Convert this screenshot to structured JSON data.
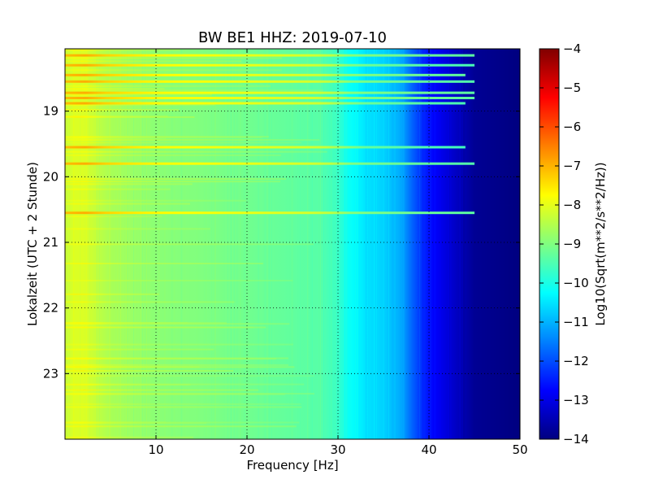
{
  "chart_data": {
    "type": "heatmap",
    "title": "BW BE1 HHZ: 2019-07-10",
    "xlabel": "Frequency [Hz]",
    "ylabel": "Lokalzeit (UTC + 2 Stunde)",
    "xlim": [
      0,
      50
    ],
    "ylim": [
      24,
      18.05
    ],
    "y_axis_inverted": true,
    "x_ticks": [
      10,
      20,
      30,
      40,
      50
    ],
    "y_ticks": [
      19,
      20,
      21,
      22,
      23
    ],
    "grid": true,
    "grid_style": "dotted",
    "colormap": "jet",
    "colorbar": {
      "label": "Log10(Sqrt(m**2/s**2/Hz))",
      "range": [
        -14,
        -4
      ],
      "ticks": [
        -4,
        -5,
        -6,
        -7,
        -8,
        -9,
        -10,
        -11,
        -12,
        -13,
        -14
      ]
    },
    "spectral_profile": {
      "frequency_hz": [
        0,
        1,
        2,
        5,
        10,
        15,
        20,
        25,
        28,
        30,
        31,
        33,
        35,
        37,
        38,
        39,
        40,
        42,
        45,
        50
      ],
      "log10_amplitude": [
        -8.3,
        -8.1,
        -8.1,
        -8.6,
        -8.9,
        -9.0,
        -9.15,
        -9.3,
        -9.4,
        -9.7,
        -10.1,
        -10.5,
        -10.7,
        -11.1,
        -11.7,
        -12.2,
        -12.6,
        -13.1,
        -13.8,
        -14.0
      ]
    },
    "horizontal_bands": [
      {
        "time_h": 18.15,
        "level": -8.0,
        "max_hz": 45
      },
      {
        "time_h": 18.3,
        "level": -8.2,
        "max_hz": 45
      },
      {
        "time_h": 18.45,
        "level": -8.0,
        "max_hz": 44
      },
      {
        "time_h": 18.55,
        "level": -8.1,
        "max_hz": 45
      },
      {
        "time_h": 18.72,
        "level": -8.0,
        "max_hz": 45
      },
      {
        "time_h": 18.8,
        "level": -8.0,
        "max_hz": 45
      },
      {
        "time_h": 18.88,
        "level": -8.2,
        "max_hz": 44
      },
      {
        "time_h": 19.55,
        "level": -8.3,
        "max_hz": 44
      },
      {
        "time_h": 19.8,
        "level": -8.1,
        "max_hz": 45
      },
      {
        "time_h": 20.55,
        "level": -8.0,
        "max_hz": 45
      }
    ]
  }
}
